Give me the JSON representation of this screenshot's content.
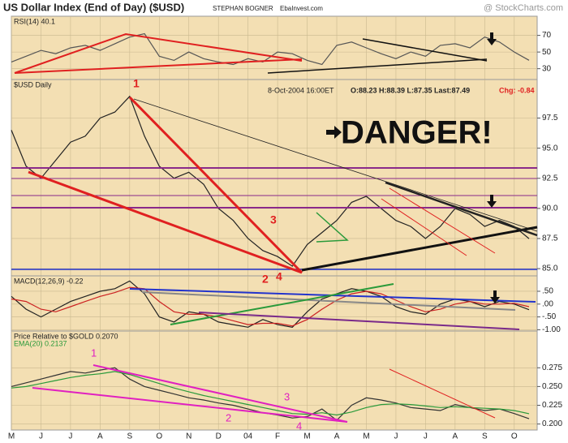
{
  "header": {
    "title": "US Dollar Index (End of Day) ($USD)",
    "author": "STEPHAN BOGNER",
    "site": "EbaInvest.com",
    "source": "@ StockCharts.com"
  },
  "chart_data": [
    {
      "type": "line",
      "title": "RSI(14) 40.1",
      "ylim": [
        17,
        93
      ],
      "yticks": [
        70,
        50,
        30
      ],
      "series": [
        {
          "color": "#555555",
          "values": [
            38,
            45,
            52,
            48,
            55,
            58,
            52,
            60,
            68,
            72,
            45,
            40,
            50,
            42,
            38,
            35,
            42,
            38,
            50,
            48,
            40,
            35,
            58,
            62,
            55,
            48,
            42,
            50,
            45,
            58,
            60,
            55,
            68,
            62,
            50,
            40.1
          ]
        }
      ]
    },
    {
      "type": "line",
      "title": "$USD Daily",
      "date": "8-Oct-2004 16:00ET",
      "quote": "O:88.23 H:88.39 L:87.35 Last:87.49",
      "change": "Chg: -0.84",
      "ylim": [
        84.4,
        100.7
      ],
      "yticks": [
        {
          "value": 97.5,
          "label": "97.5"
        },
        {
          "value": 95,
          "label": "95.0"
        },
        {
          "value": 92.5,
          "label": "92.5"
        },
        {
          "value": 90,
          "label": "90.0"
        },
        {
          "value": 87.5,
          "label": "87.5"
        },
        {
          "value": 85,
          "label": "85.0"
        }
      ],
      "annotations": [
        "DANGER!",
        "1",
        "2",
        "3",
        "4"
      ],
      "series": [
        {
          "color": "#222222",
          "values": [
            96.5,
            93.5,
            92.5,
            94,
            95.5,
            96,
            97.5,
            98,
            99.3,
            96,
            93.5,
            92.5,
            93,
            92,
            90,
            89,
            87.5,
            86.5,
            86,
            85.2,
            87,
            88,
            89,
            90.5,
            91,
            90,
            89,
            88.5,
            87.5,
            88.5,
            90,
            89.5,
            88.5,
            89,
            88.5,
            87.49
          ]
        }
      ]
    },
    {
      "type": "line",
      "title": "MACD(12,26,9) -0.22",
      "ylim": [
        -1.05,
        1.1
      ],
      "yticks": [
        {
          "value": 0.5,
          "label": ".50"
        },
        {
          "value": 0,
          "label": ".00"
        },
        {
          "value": -0.5,
          "label": "-.50"
        },
        {
          "value": -1,
          "label": "-1.00"
        }
      ],
      "series": [
        {
          "color": "#222222",
          "values": [
            0.3,
            -0.2,
            -0.5,
            -0.2,
            0.1,
            0.3,
            0.5,
            0.6,
            0.9,
            0.4,
            -0.5,
            -0.7,
            -0.3,
            -0.4,
            -0.7,
            -0.8,
            -0.9,
            -0.6,
            -0.8,
            -0.9,
            -0.3,
            0.2,
            0.4,
            0.6,
            0.5,
            0.3,
            -0.1,
            -0.3,
            -0.4,
            0,
            0.2,
            0.1,
            -0.1,
            0.1,
            0,
            -0.22
          ]
        },
        {
          "color": "#cc2222",
          "values": [
            0.2,
            0.1,
            -0.2,
            -0.3,
            -0.1,
            0.1,
            0.3,
            0.45,
            0.65,
            0.6,
            0.1,
            -0.3,
            -0.4,
            -0.4,
            -0.5,
            -0.65,
            -0.8,
            -0.75,
            -0.75,
            -0.85,
            -0.6,
            -0.2,
            0.15,
            0.4,
            0.5,
            0.4,
            0.15,
            -0.1,
            -0.3,
            -0.2,
            0,
            0.1,
            0,
            0,
            0.03,
            -0.1
          ]
        }
      ]
    },
    {
      "type": "line",
      "title": "Price Relative to $GOLD 0.2070",
      "ema_label": "EMA(20) 0.2137",
      "ylim": [
        0.192,
        0.324
      ],
      "yticks": [
        {
          "value": 0.275,
          "label": "0.275"
        },
        {
          "value": 0.25,
          "label": "0.250"
        },
        {
          "value": 0.225,
          "label": "0.225"
        },
        {
          "value": 0.2,
          "label": "0.200"
        }
      ],
      "annotations": [
        "1",
        "2",
        "3",
        "4"
      ],
      "categories": [
        "M",
        null,
        "J",
        null,
        "J",
        null,
        "A",
        null,
        "S",
        null,
        "O",
        null,
        "N",
        null,
        "D",
        null,
        "04",
        null,
        "F",
        null,
        "M",
        null,
        "A",
        null,
        "M",
        null,
        "J",
        null,
        "J",
        null,
        "A",
        null,
        "S",
        null,
        "O",
        null
      ],
      "series": [
        {
          "color": "#333333",
          "values": [
            0.25,
            0.255,
            0.26,
            0.265,
            0.27,
            0.268,
            0.272,
            0.275,
            0.26,
            0.25,
            0.245,
            0.24,
            0.235,
            0.232,
            0.228,
            0.225,
            0.22,
            0.215,
            0.212,
            0.208,
            0.21,
            0.22,
            0.205,
            0.225,
            0.235,
            0.232,
            0.228,
            0.222,
            0.22,
            0.218,
            0.226,
            0.222,
            0.218,
            0.22,
            0.214,
            0.207
          ]
        },
        {
          "color": "#2a9a3a",
          "values": [
            0.248,
            0.25,
            0.254,
            0.258,
            0.262,
            0.265,
            0.267,
            0.27,
            0.266,
            0.26,
            0.254,
            0.248,
            0.243,
            0.238,
            0.234,
            0.23,
            0.226,
            0.222,
            0.218,
            0.214,
            0.213,
            0.215,
            0.212,
            0.216,
            0.222,
            0.226,
            0.227,
            0.226,
            0.224,
            0.222,
            0.223,
            0.222,
            0.221,
            0.22,
            0.218,
            0.2137
          ]
        }
      ]
    }
  ]
}
